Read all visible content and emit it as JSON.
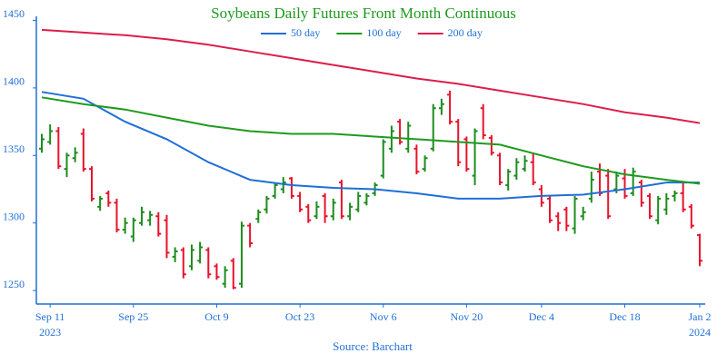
{
  "chart_data": {
    "type": "ohlc",
    "title": "Soybeans Daily Futures Front Month Continuous",
    "source": "Source: Barchart",
    "x": [
      "2023-09-08",
      "2023-09-11",
      "2023-09-12",
      "2023-09-13",
      "2023-09-14",
      "2023-09-15",
      "2023-09-18",
      "2023-09-19",
      "2023-09-20",
      "2023-09-21",
      "2023-09-22",
      "2023-09-25",
      "2023-09-26",
      "2023-09-27",
      "2023-09-28",
      "2023-09-29",
      "2023-10-02",
      "2023-10-03",
      "2023-10-04",
      "2023-10-05",
      "2023-10-06",
      "2023-10-09",
      "2023-10-10",
      "2023-10-11",
      "2023-10-12",
      "2023-10-13",
      "2023-10-16",
      "2023-10-17",
      "2023-10-18",
      "2023-10-19",
      "2023-10-20",
      "2023-10-23",
      "2023-10-24",
      "2023-10-25",
      "2023-10-26",
      "2023-10-27",
      "2023-10-30",
      "2023-10-31",
      "2023-11-01",
      "2023-11-02",
      "2023-11-03",
      "2023-11-06",
      "2023-11-07",
      "2023-11-08",
      "2023-11-09",
      "2023-11-10",
      "2023-11-13",
      "2023-11-14",
      "2023-11-15",
      "2023-11-16",
      "2023-11-17",
      "2023-11-20",
      "2023-11-21",
      "2023-11-22",
      "2023-11-24",
      "2023-11-27",
      "2023-11-28",
      "2023-11-29",
      "2023-11-30",
      "2023-12-01",
      "2023-12-04",
      "2023-12-05",
      "2023-12-06",
      "2023-12-07",
      "2023-12-08",
      "2023-12-11",
      "2023-12-12",
      "2023-12-13",
      "2023-12-14",
      "2023-12-15",
      "2023-12-18",
      "2023-12-19",
      "2023-12-20",
      "2023-12-21",
      "2023-12-22",
      "2023-12-26",
      "2023-12-27",
      "2023-12-28",
      "2023-12-29",
      "2024-01-02"
    ],
    "open": [
      1355,
      1360,
      1368,
      1340,
      1348,
      1366,
      1340,
      1312,
      1322,
      1315,
      1295,
      1290,
      1300,
      1302,
      1305,
      1302,
      1275,
      1280,
      1268,
      1272,
      1280,
      1268,
      1255,
      1272,
      1255,
      1298,
      1303,
      1310,
      1320,
      1325,
      1333,
      1320,
      1312,
      1305,
      1320,
      1305,
      1330,
      1305,
      1310,
      1315,
      1322,
      1335,
      1355,
      1375,
      1355,
      1355,
      1340,
      1355,
      1385,
      1395,
      1375,
      1362,
      1335,
      1385,
      1363,
      1350,
      1328,
      1335,
      1340,
      1345,
      1325,
      1318,
      1305,
      1310,
      1296,
      1305,
      1318,
      1338,
      1335,
      1325,
      1333,
      1322,
      1330,
      1320,
      1302,
      1310,
      1320,
      1322,
      1312,
      1291
    ],
    "high": [
      1366,
      1373,
      1371,
      1352,
      1356,
      1370,
      1342,
      1320,
      1324,
      1318,
      1304,
      1304,
      1312,
      1309,
      1308,
      1306,
      1282,
      1282,
      1284,
      1286,
      1282,
      1270,
      1268,
      1274,
      1301,
      1300,
      1310,
      1320,
      1330,
      1334,
      1334,
      1323,
      1314,
      1316,
      1322,
      1318,
      1332,
      1315,
      1323,
      1322,
      1330,
      1362,
      1372,
      1377,
      1375,
      1358,
      1350,
      1388,
      1392,
      1398,
      1377,
      1364,
      1370,
      1388,
      1365,
      1352,
      1340,
      1348,
      1350,
      1352,
      1328,
      1320,
      1308,
      1312,
      1320,
      1312,
      1338,
      1344,
      1340,
      1338,
      1340,
      1341,
      1332,
      1322,
      1320,
      1322,
      1324,
      1330,
      1314,
      1292
    ],
    "low": [
      1352,
      1358,
      1340,
      1334,
      1345,
      1338,
      1316,
      1309,
      1312,
      1293,
      1292,
      1286,
      1298,
      1298,
      1290,
      1274,
      1271,
      1259,
      1265,
      1270,
      1259,
      1258,
      1252,
      1251,
      1252,
      1282,
      1300,
      1307,
      1318,
      1322,
      1318,
      1308,
      1300,
      1303,
      1300,
      1302,
      1303,
      1302,
      1308,
      1313,
      1320,
      1333,
      1352,
      1358,
      1352,
      1336,
      1338,
      1353,
      1380,
      1373,
      1342,
      1338,
      1328,
      1362,
      1350,
      1328,
      1324,
      1332,
      1338,
      1328,
      1312,
      1300,
      1294,
      1294,
      1292,
      1302,
      1315,
      1320,
      1303,
      1322,
      1318,
      1320,
      1312,
      1303,
      1299,
      1306,
      1316,
      1308,
      1296,
      1268
    ],
    "close": [
      1362,
      1368,
      1342,
      1350,
      1352,
      1340,
      1318,
      1318,
      1315,
      1295,
      1300,
      1302,
      1308,
      1306,
      1292,
      1278,
      1279,
      1262,
      1280,
      1282,
      1262,
      1260,
      1265,
      1252,
      1298,
      1285,
      1308,
      1318,
      1328,
      1330,
      1320,
      1310,
      1302,
      1312,
      1305,
      1315,
      1305,
      1312,
      1320,
      1320,
      1328,
      1360,
      1368,
      1360,
      1372,
      1338,
      1348,
      1385,
      1388,
      1375,
      1345,
      1340,
      1368,
      1365,
      1352,
      1330,
      1338,
      1345,
      1346,
      1330,
      1315,
      1302,
      1300,
      1298,
      1318,
      1308,
      1332,
      1322,
      1305,
      1335,
      1320,
      1338,
      1315,
      1305,
      1318,
      1318,
      1322,
      1310,
      1298,
      1272
    ],
    "up_color": "#1e8c1e",
    "down_color": "#e8132b",
    "lines": [
      {
        "name": "50 day",
        "color": "#1f6fd6",
        "x": [
          "2023-09-08",
          "2023-09-15",
          "2023-09-22",
          "2023-09-29",
          "2023-10-06",
          "2023-10-13",
          "2023-10-20",
          "2023-10-27",
          "2023-11-03",
          "2023-11-10",
          "2023-11-17",
          "2023-11-27",
          "2023-12-04",
          "2023-12-11",
          "2023-12-18",
          "2023-12-26",
          "2024-01-02"
        ],
        "values": [
          1397,
          1392,
          1375,
          1362,
          1345,
          1332,
          1328,
          1326,
          1325,
          1322,
          1318,
          1318,
          1320,
          1321,
          1325,
          1330,
          1330
        ]
      },
      {
        "name": "100 day",
        "color": "#1e9a1e",
        "x": [
          "2023-09-08",
          "2023-09-15",
          "2023-09-22",
          "2023-09-29",
          "2023-10-06",
          "2023-10-13",
          "2023-10-20",
          "2023-10-27",
          "2023-11-03",
          "2023-11-10",
          "2023-11-17",
          "2023-11-27",
          "2023-12-04",
          "2023-12-11",
          "2023-12-18",
          "2023-12-26",
          "2024-01-02"
        ],
        "values": [
          1393,
          1388,
          1384,
          1378,
          1372,
          1368,
          1366,
          1366,
          1364,
          1362,
          1360,
          1358,
          1350,
          1342,
          1336,
          1332,
          1329
        ]
      },
      {
        "name": "200 day",
        "color": "#dc1e4a",
        "x": [
          "2023-09-08",
          "2023-09-15",
          "2023-09-22",
          "2023-09-29",
          "2023-10-06",
          "2023-10-13",
          "2023-10-20",
          "2023-10-27",
          "2023-11-03",
          "2023-11-10",
          "2023-11-17",
          "2023-11-27",
          "2023-12-04",
          "2023-12-11",
          "2023-12-18",
          "2023-12-26",
          "2024-01-02"
        ],
        "values": [
          1443,
          1441,
          1439,
          1436,
          1432,
          1427,
          1422,
          1417,
          1412,
          1407,
          1403,
          1398,
          1393,
          1388,
          1382,
          1378,
          1374
        ]
      }
    ],
    "ylim": [
      1240,
      1453
    ],
    "yticks": [
      1250,
      1300,
      1350,
      1400,
      1450
    ],
    "xticks": [
      {
        "value": "2023-09-11",
        "label": "Sep 11",
        "year": "2023"
      },
      {
        "value": "2023-09-25",
        "label": "Sep 25"
      },
      {
        "value": "2023-10-09",
        "label": "Oct 9"
      },
      {
        "value": "2023-10-23",
        "label": "Oct 23"
      },
      {
        "value": "2023-11-06",
        "label": "Nov 6"
      },
      {
        "value": "2023-11-20",
        "label": "Nov 20"
      },
      {
        "value": "2023-12-04",
        "label": "Dec 4"
      },
      {
        "value": "2023-12-18",
        "label": "Dec 18"
      },
      {
        "value": "2024-01-02",
        "label": "Jan 2",
        "year": "2024"
      }
    ],
    "axis_color": "#1f6fd6",
    "title_color": "#1e9a1e",
    "legend": "top",
    "grid": false
  }
}
